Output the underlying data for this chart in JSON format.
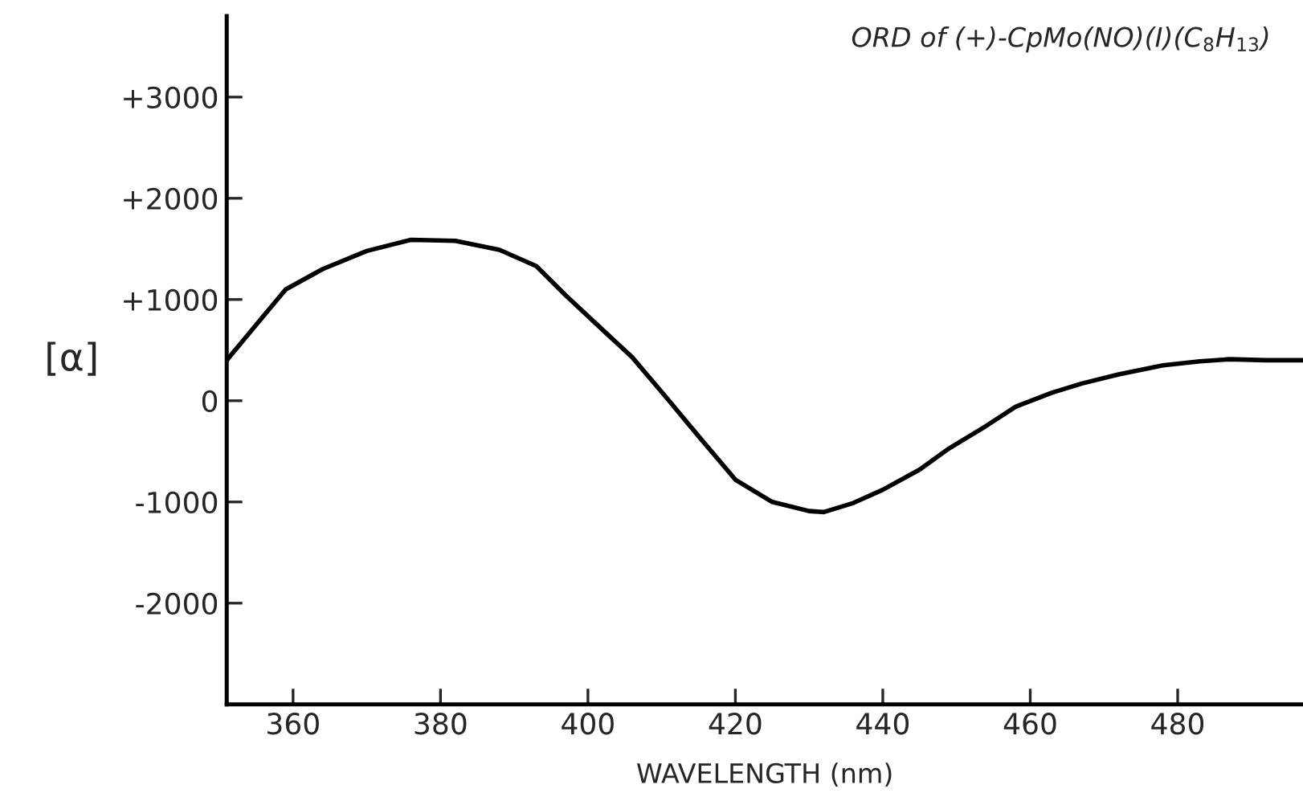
{
  "chart_data": {
    "type": "line",
    "title": "ORD of (+)-CpMo(NO)(I)(C$_{8}$H$_{13}$)",
    "xlabel": "WAVELENGTH (nm)",
    "ylabel": "[α]",
    "x": [
      351,
      355,
      359,
      364,
      370,
      376,
      382,
      388,
      393,
      397,
      402,
      406,
      411,
      415,
      420,
      425,
      430,
      432,
      436,
      440,
      445,
      449,
      454,
      458,
      463,
      467,
      472,
      478,
      483,
      487,
      492,
      497
    ],
    "series": [
      {
        "color": "#000000",
        "values": [
          400,
          750,
          1100,
          1300,
          1480,
          1590,
          1580,
          1490,
          1330,
          1040,
          700,
          430,
          0,
          -350,
          -780,
          -1000,
          -1090,
          -1100,
          -1010,
          -880,
          -680,
          -470,
          -250,
          -60,
          80,
          170,
          260,
          350,
          390,
          410,
          400,
          400
        ]
      }
    ],
    "xlim": [
      351,
      497
    ],
    "ylim": [
      -3000,
      3800
    ],
    "xticks": [
      360,
      380,
      400,
      420,
      440,
      460,
      480
    ],
    "yticks": [
      {
        "value": 3000,
        "label": "+3000"
      },
      {
        "value": 2000,
        "label": "+2000"
      },
      {
        "value": 1000,
        "label": "+1000"
      },
      0,
      -1000,
      -2000
    ],
    "grid": false,
    "legend": false,
    "marker": "none",
    "line_style": "solid"
  }
}
